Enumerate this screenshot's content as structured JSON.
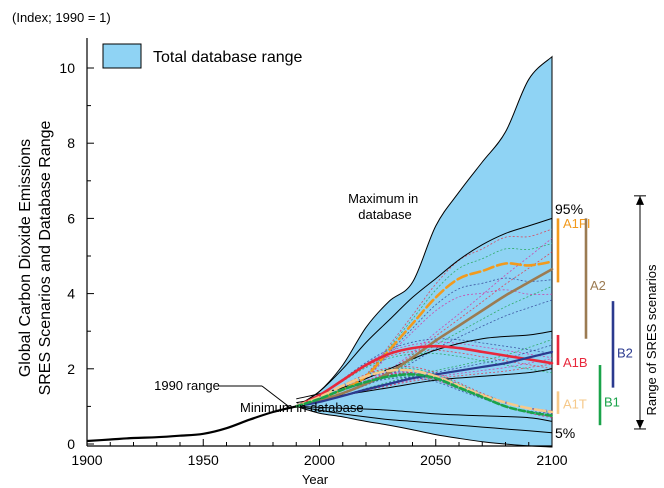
{
  "chart_data": {
    "type": "line",
    "unit_note": "(Index; 1990 = 1)",
    "ylabel_lines": [
      "Global Carbon Dioxide Emissions",
      "SRES Scenarios and Database Range"
    ],
    "xlabel": "Year",
    "xlim": [
      1900,
      2100
    ],
    "ylim": [
      0,
      10.5
    ],
    "x_ticks": [
      1900,
      1950,
      2000,
      2050,
      2100
    ],
    "y_ticks": [
      0,
      2,
      4,
      6,
      8,
      10
    ],
    "grid": false,
    "legend": {
      "position": "top-left",
      "entries": [
        {
          "label": "Total database range",
          "color": "#8fd3f4"
        }
      ]
    },
    "annotations": {
      "maximum": "Maximum in\ndatabase",
      "minimum": "Minimum in database",
      "range_1990": "1990 range",
      "p95": "95%",
      "p5": "5%",
      "range_of_sres": "Range of SRES scenarios"
    },
    "historical": {
      "x": [
        1900,
        1910,
        1920,
        1930,
        1940,
        1950,
        1960,
        1970,
        1980,
        1990
      ],
      "y": [
        0.08,
        0.12,
        0.16,
        0.18,
        0.22,
        0.27,
        0.42,
        0.65,
        0.85,
        1.0
      ]
    },
    "database_range": {
      "x": [
        1990,
        2000,
        2010,
        2020,
        2030,
        2040,
        2050,
        2060,
        2070,
        2080,
        2090,
        2100
      ],
      "max": [
        1.0,
        1.4,
        2.1,
        3.1,
        3.8,
        4.3,
        5.8,
        6.7,
        7.5,
        8.3,
        9.7,
        10.3
      ],
      "min": [
        1.0,
        0.82,
        0.72,
        0.6,
        0.5,
        0.38,
        0.25,
        0.15,
        0.06,
        0.0,
        -0.05,
        -0.08
      ]
    },
    "percentiles": {
      "x": [
        1990,
        2000,
        2010,
        2020,
        2030,
        2040,
        2050,
        2060,
        2070,
        2080,
        2090,
        2100
      ],
      "p95": [
        1.0,
        1.4,
        2.0,
        2.7,
        3.3,
        3.9,
        4.4,
        4.9,
        5.3,
        5.6,
        5.8,
        6.0
      ],
      "p5": [
        1.0,
        0.9,
        0.8,
        0.72,
        0.65,
        0.6,
        0.55,
        0.5,
        0.45,
        0.4,
        0.35,
        0.3
      ]
    },
    "series": [
      {
        "name": "A1FI",
        "color": "#f29a1d",
        "x": [
          1990,
          2000,
          2010,
          2020,
          2030,
          2040,
          2050,
          2060,
          2070,
          2080,
          2090,
          2100
        ],
        "y": [
          1.0,
          1.2,
          1.45,
          1.8,
          2.5,
          3.2,
          3.9,
          4.4,
          4.6,
          4.8,
          4.75,
          4.85
        ]
      },
      {
        "name": "A2",
        "color": "#9b7b52",
        "x": [
          1990,
          2000,
          2010,
          2020,
          2030,
          2040,
          2050,
          2060,
          2070,
          2080,
          2090,
          2100
        ],
        "y": [
          1.0,
          1.15,
          1.35,
          1.6,
          1.9,
          2.3,
          2.75,
          3.15,
          3.55,
          3.95,
          4.3,
          4.65
        ]
      },
      {
        "name": "A1B",
        "color": "#e8283c",
        "x": [
          1990,
          2000,
          2010,
          2020,
          2030,
          2040,
          2050,
          2060,
          2070,
          2080,
          2090,
          2100
        ],
        "y": [
          1.0,
          1.3,
          1.7,
          2.1,
          2.4,
          2.55,
          2.6,
          2.55,
          2.45,
          2.35,
          2.25,
          2.15
        ]
      },
      {
        "name": "B2",
        "color": "#2b3a8f",
        "x": [
          1990,
          2000,
          2010,
          2020,
          2030,
          2040,
          2050,
          2060,
          2070,
          2080,
          2090,
          2100
        ],
        "y": [
          1.0,
          1.12,
          1.28,
          1.45,
          1.6,
          1.75,
          1.85,
          1.95,
          2.05,
          2.15,
          2.3,
          2.45
        ]
      },
      {
        "name": "A1T",
        "color": "#f6c98a",
        "x": [
          1990,
          2000,
          2010,
          2020,
          2030,
          2040,
          2050,
          2060,
          2070,
          2080,
          2090,
          2100
        ],
        "y": [
          1.0,
          1.25,
          1.55,
          1.8,
          1.95,
          1.95,
          1.8,
          1.55,
          1.3,
          1.1,
          0.95,
          0.85
        ]
      },
      {
        "name": "B1",
        "color": "#1aa34a",
        "x": [
          1990,
          2000,
          2010,
          2020,
          2030,
          2040,
          2050,
          2060,
          2070,
          2080,
          2090,
          2100
        ],
        "y": [
          1.0,
          1.2,
          1.45,
          1.65,
          1.8,
          1.85,
          1.75,
          1.5,
          1.25,
          1.0,
          0.85,
          0.75
        ]
      }
    ],
    "scenario_bars": [
      {
        "name": "A1FI",
        "color": "#f29a1d",
        "low": 4.3,
        "high": 6.0
      },
      {
        "name": "A2",
        "color": "#9b7b52",
        "low": 2.8,
        "high": 6.0
      },
      {
        "name": "A1B",
        "color": "#e8283c",
        "low": 2.1,
        "high": 2.9
      },
      {
        "name": "B2",
        "color": "#2b3a8f",
        "low": 1.5,
        "high": 3.8
      },
      {
        "name": "A1T",
        "color": "#f6c98a",
        "low": 0.8,
        "high": 1.4
      },
      {
        "name": "B1",
        "color": "#1aa34a",
        "low": 0.5,
        "high": 2.1
      }
    ],
    "sres_range": [
      0.4,
      6.6
    ]
  }
}
